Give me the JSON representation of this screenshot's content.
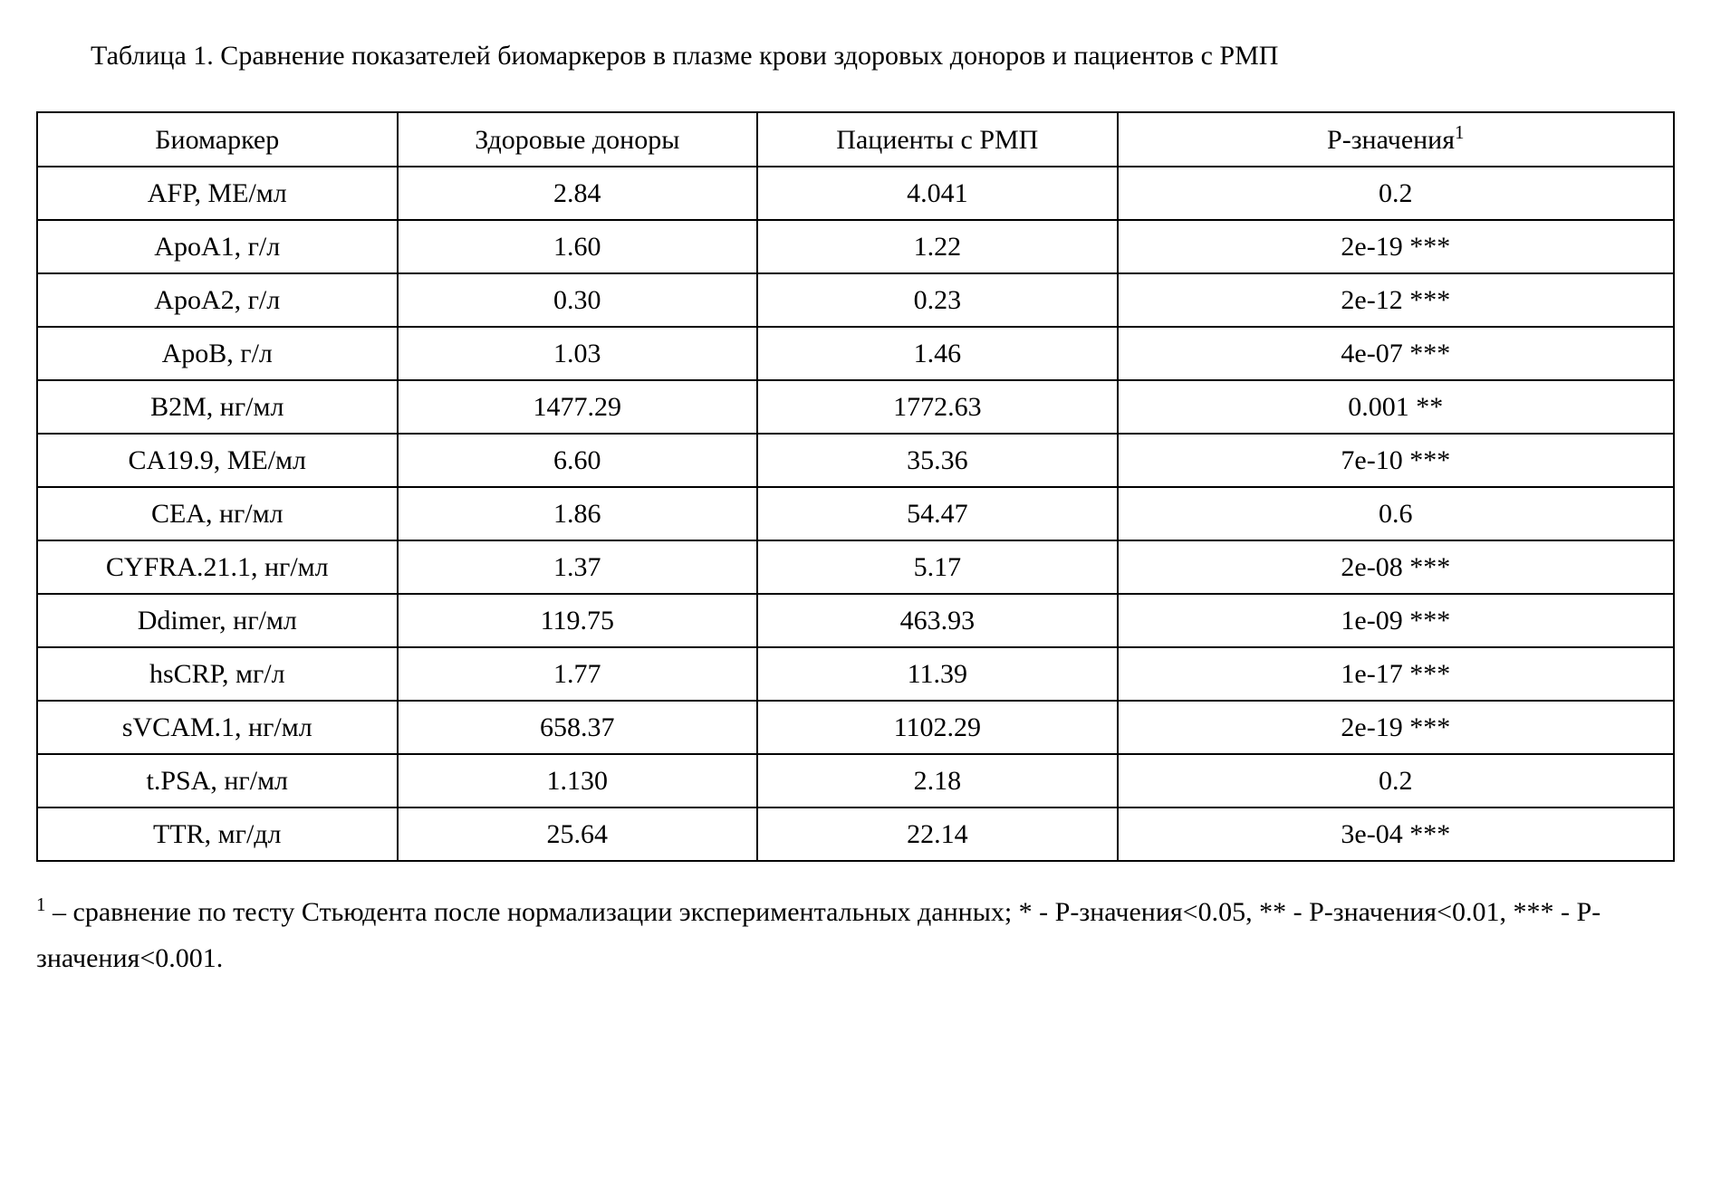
{
  "title_text": "Таблица 1. Сравнение показателей биомаркеров в плазме крови здоровых доноров и пациентов с РМП",
  "table": {
    "columns": [
      "Биомаркер",
      "Здоровые доноры",
      "Пациенты с РМП",
      "P-значения"
    ],
    "header_sup": "1",
    "rows": [
      [
        "AFP, МЕ/мл",
        "2.84",
        "4.041",
        "0.2"
      ],
      [
        "ApoA1, г/л",
        "1.60",
        "1.22",
        "2e-19 ***"
      ],
      [
        "ApoA2, г/л",
        "0.30",
        "0.23",
        "2e-12 ***"
      ],
      [
        "ApoB, г/л",
        "1.03",
        "1.46",
        "4e-07 ***"
      ],
      [
        "B2M, нг/мл",
        "1477.29",
        "1772.63",
        "0.001  **"
      ],
      [
        "CA19.9, МЕ/мл",
        "6.60",
        "35.36",
        "7e-10 ***"
      ],
      [
        "CEA, нг/мл",
        "1.86",
        "54.47",
        "0.6"
      ],
      [
        "CYFRA.21.1, нг/мл",
        "1.37",
        "5.17",
        "2e-08 ***"
      ],
      [
        "Ddimer, нг/мл",
        "119.75",
        "463.93",
        "1e-09 ***"
      ],
      [
        "hsCRP, мг/л",
        "1.77",
        "11.39",
        "1e-17 ***"
      ],
      [
        "sVCAM.1, нг/мл",
        "658.37",
        "1102.29",
        "2e-19 ***"
      ],
      [
        "t.PSA, нг/мл",
        "1.130",
        "2.18",
        "0.2"
      ],
      [
        "TTR, мг/дл",
        "25.64",
        "22.14",
        "3e-04 ***"
      ]
    ],
    "border_color": "#000000",
    "background_color": "#ffffff",
    "font_family": "Times New Roman",
    "header_fontsize": 30,
    "cell_fontsize": 30
  },
  "footnote_sup": "1",
  "footnote_text": " – сравнение по тесту Стьюдента после нормализации экспериментальных данных; * - P-значения<0.05, ** - P-значения<0.01, *** - P-значения<0.001."
}
